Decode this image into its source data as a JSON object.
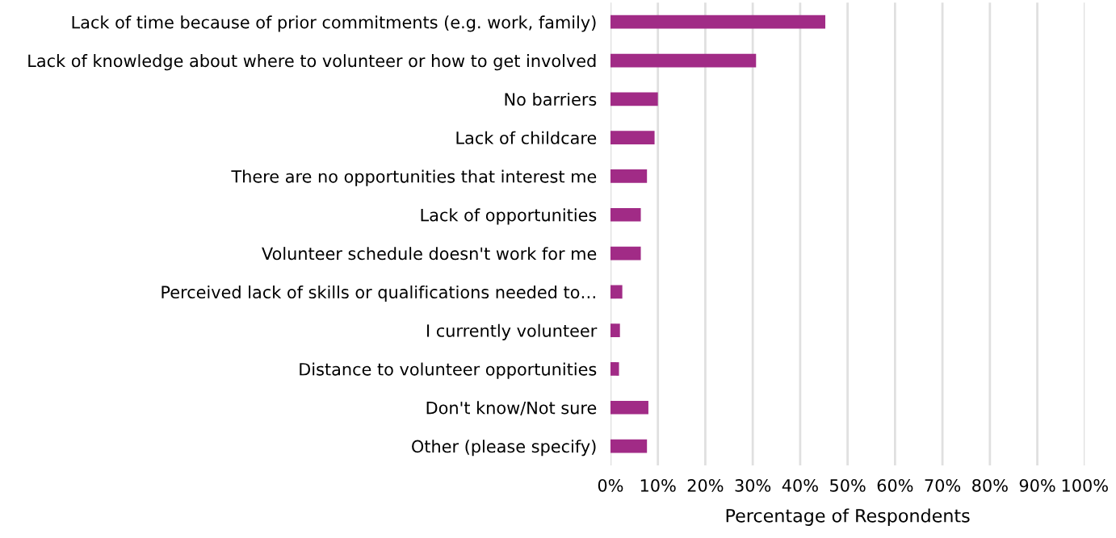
{
  "chart_data": {
    "type": "bar",
    "orientation": "horizontal",
    "xlabel": "Percentage of Respondents",
    "categories": [
      "Lack of time because of prior commitments (e.g. work, family)",
      "Lack of knowledge about where to volunteer or how to get involved",
      "No barriers",
      "Lack of childcare",
      "There are no opportunities that interest me",
      "Lack of opportunities",
      "Volunteer schedule doesn't work for me",
      "Perceived lack of skills or qualifications needed to…",
      "I currently volunteer",
      "Distance to volunteer opportunities",
      "Don't know/Not sure",
      "Other (please specify)"
    ],
    "values": [
      45.3,
      30.7,
      10.0,
      9.3,
      7.7,
      6.4,
      6.4,
      2.5,
      2.0,
      1.8,
      8.0,
      7.7
    ],
    "color": "#a12b86",
    "xlim": [
      0,
      100
    ],
    "xticks": [
      {
        "value": 0,
        "label": "0%"
      },
      {
        "value": 10,
        "label": "10%"
      },
      {
        "value": 20,
        "label": "20%"
      },
      {
        "value": 30,
        "label": "30%"
      },
      {
        "value": 40,
        "label": "40%"
      },
      {
        "value": 50,
        "label": "50%"
      },
      {
        "value": 60,
        "label": "60%"
      },
      {
        "value": 70,
        "label": "70%"
      },
      {
        "value": 80,
        "label": "80%"
      },
      {
        "value": 90,
        "label": "90%"
      },
      {
        "value": 100,
        "label": "100%"
      }
    ],
    "grid": "x",
    "legend": false
  }
}
